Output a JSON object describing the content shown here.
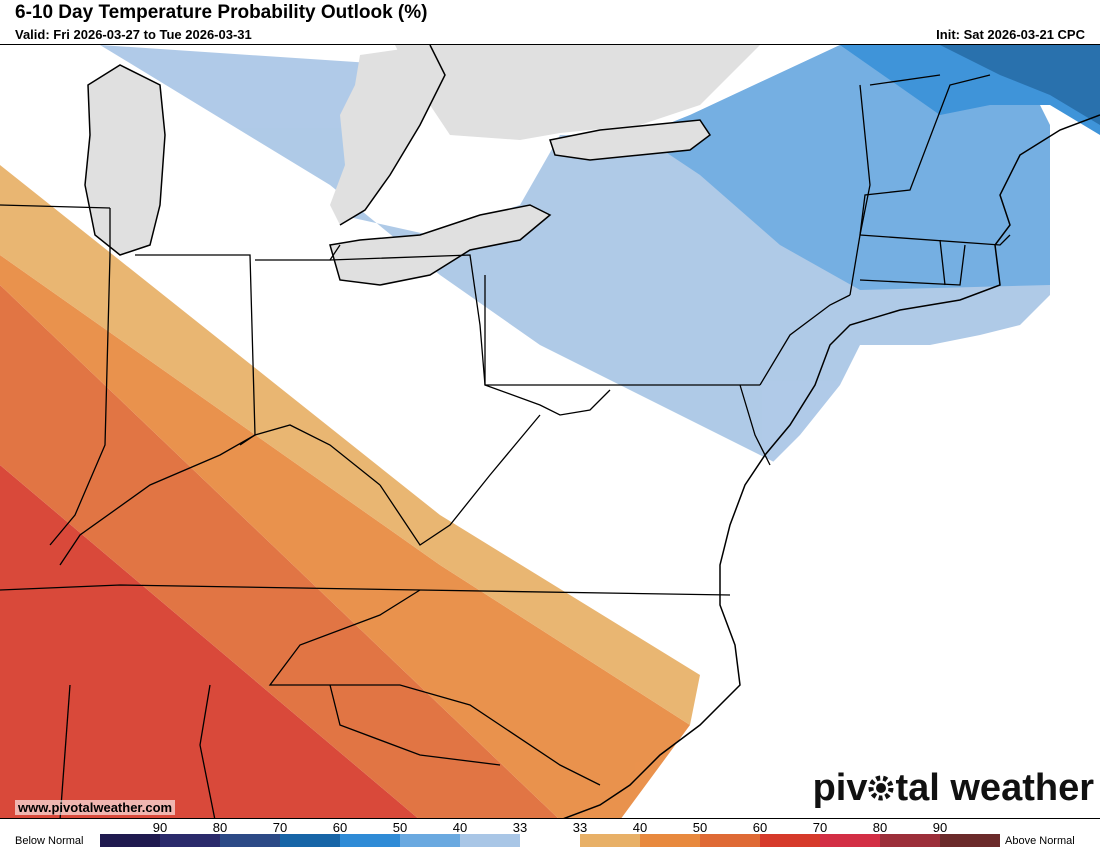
{
  "header": {
    "title": "6-10 Day Temperature Probability Outlook (%)",
    "valid": "Valid: Fri 2026-03-27 to Tue 2026-03-31",
    "init": "Init: Sat 2026-03-21 CPC"
  },
  "footer": {
    "website": "www.pivotalweather.com",
    "brand_left": "piv",
    "brand_right": "tal weather"
  },
  "legend": {
    "below_label": "Below Normal",
    "above_label": "Above Normal",
    "labels": [
      "90",
      "80",
      "70",
      "60",
      "50",
      "40",
      "33",
      "33",
      "40",
      "50",
      "60",
      "70",
      "80",
      "90"
    ],
    "colors": [
      "#1f1a4f",
      "#2a2a6b",
      "#2c4a86",
      "#1765a7",
      "#2f8bd6",
      "#6aa9e0",
      "#a9c6e6",
      "#ffffff",
      "#e8b067",
      "#e8893e",
      "#df6a35",
      "#d63a2a",
      "#d32f45",
      "#9c2f3a",
      "#6b2a2a"
    ]
  },
  "map": {
    "land_color": "#ffffff",
    "water_color": "#e0e0e0",
    "bands": [
      {
        "category": "above",
        "probability": "60-70",
        "color": "#d63a2a"
      },
      {
        "category": "above",
        "probability": "50-60",
        "color": "#df6a35"
      },
      {
        "category": "above",
        "probability": "40-50",
        "color": "#e8893e"
      },
      {
        "category": "above",
        "probability": "33-40",
        "color": "#e8b067"
      },
      {
        "category": "below",
        "probability": "33-40",
        "color": "#a9c6e6"
      },
      {
        "category": "below",
        "probability": "40-50",
        "color": "#6aa9e0"
      },
      {
        "category": "below",
        "probability": "50-60",
        "color": "#2f8bd6"
      },
      {
        "category": "below",
        "probability": "60-70",
        "color": "#1765a7"
      }
    ]
  }
}
